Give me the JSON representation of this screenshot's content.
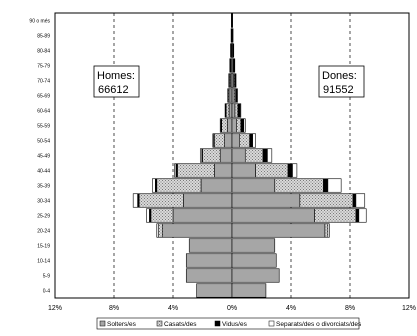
{
  "chart_data": {
    "type": "bar",
    "orientation": "horizontal-population-pyramid",
    "categories": [
      "0-4",
      "5-9",
      "10-14",
      "15-19",
      "20-24",
      "25-29",
      "30-34",
      "35-39",
      "40-44",
      "45-49",
      "50-54",
      "55-59",
      "60-64",
      "65-69",
      "70-74",
      "75-79",
      "80-84",
      "85-89",
      "90 o més"
    ],
    "series": [
      {
        "name": "Solters/es",
        "homes": [
          2.4,
          3.1,
          3.1,
          2.9,
          4.7,
          4.0,
          3.3,
          2.1,
          1.2,
          0.8,
          0.5,
          0.3,
          0.2,
          0.15,
          0.1,
          0.08,
          0.05,
          0.03,
          0.02
        ],
        "dones": [
          2.3,
          3.2,
          3.0,
          2.9,
          6.3,
          5.6,
          4.6,
          2.9,
          1.6,
          0.9,
          0.5,
          0.3,
          0.2,
          0.15,
          0.1,
          0.08,
          0.05,
          0.03,
          0.02
        ]
      },
      {
        "name": "Casats/des",
        "homes": [
          0,
          0,
          0,
          0,
          0.3,
          1.5,
          3.0,
          3.0,
          2.5,
          1.2,
          0.7,
          0.4,
          0.2,
          0.1,
          0.08,
          0.05,
          0.03,
          0.02,
          0.01
        ],
        "dones": [
          0,
          0,
          0,
          0,
          0.2,
          2.8,
          3.6,
          3.3,
          2.2,
          1.2,
          0.7,
          0.3,
          0.2,
          0.1,
          0.08,
          0.05,
          0.03,
          0.02,
          0.01
        ]
      },
      {
        "name": "Vidus/es",
        "homes": [
          0,
          0,
          0,
          0,
          0,
          0.1,
          0.1,
          0.1,
          0.1,
          0.05,
          0.05,
          0.05,
          0.05,
          0.03,
          0.03,
          0.02,
          0.02,
          0.01,
          0.01
        ],
        "dones": [
          0,
          0,
          0,
          0,
          0,
          0.2,
          0.2,
          0.3,
          0.3,
          0.3,
          0.2,
          0.2,
          0.15,
          0.1,
          0.08,
          0.06,
          0.04,
          0.02,
          0.01
        ]
      },
      {
        "name": "Separats/des o divorciats/des",
        "homes": [
          0,
          0,
          0,
          0,
          0.1,
          0.2,
          0.3,
          0.2,
          0.1,
          0.1,
          0.05,
          0.05,
          0.02,
          0.01,
          0.01,
          0,
          0,
          0,
          0
        ],
        "dones": [
          0,
          0,
          0,
          0,
          0.1,
          0.5,
          0.6,
          0.9,
          0.3,
          0.3,
          0.2,
          0.1,
          0.05,
          0.02,
          0.01,
          0,
          0,
          0,
          0
        ]
      }
    ],
    "xticks": [
      "12%",
      "8%",
      "4%",
      "0%",
      "4%",
      "8%",
      "12%"
    ],
    "xlim": [
      -12,
      12
    ],
    "grid": "vertical dashed",
    "legend_position": "bottom"
  },
  "labels": {
    "homes_title": "Homes:",
    "homes_total": "66612",
    "dones_title": "Dones:",
    "dones_total": "91552"
  },
  "colors": {
    "Solters/es": "#a6a6a6",
    "Casats/des": "#d4d4d4",
    "Vidus/es": "#000000",
    "Separats/des o divorciats/des": "#ffffff"
  }
}
